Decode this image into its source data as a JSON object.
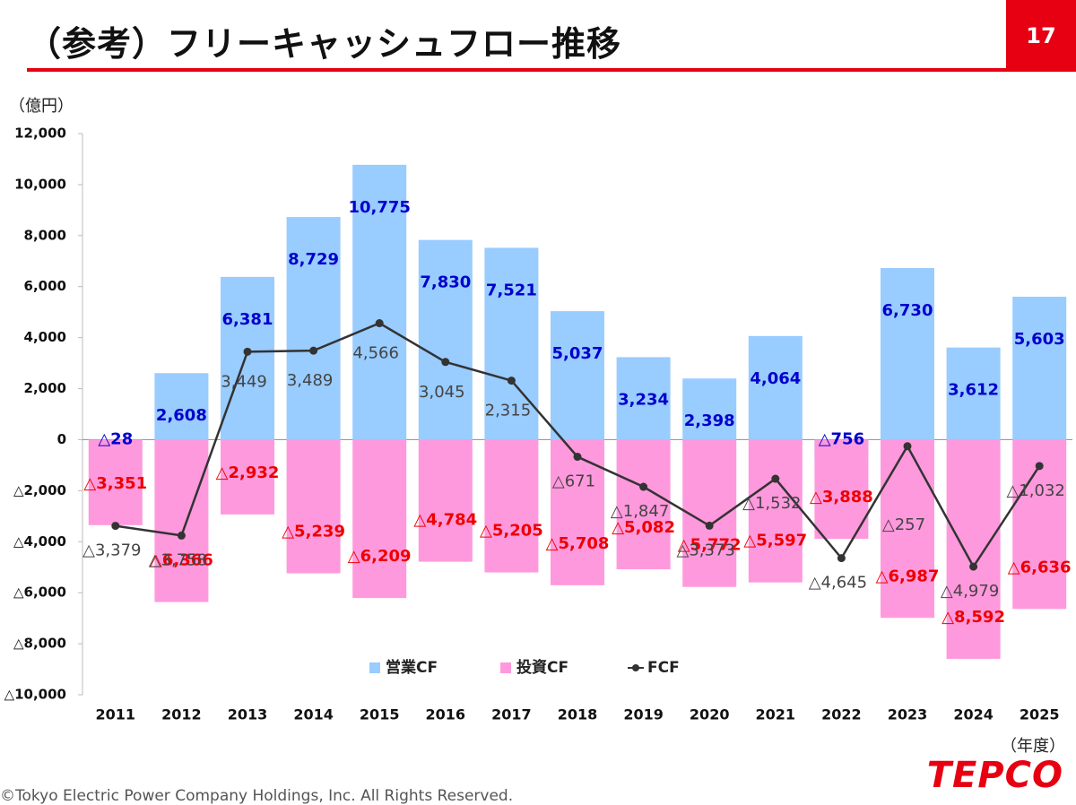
{
  "header": {
    "title": "（参考）フリーキャッシュフロー推移",
    "page_number": "17"
  },
  "footer": {
    "logo_text": "TEPCO",
    "copyright": "©Tokyo Electric Power Company Holdings, Inc. All Rights Reserved."
  },
  "colors": {
    "accent": "#e60012",
    "operating_bar": "#99ccff",
    "investing_bar": "#ff99dd",
    "fcf_line": "#333333",
    "operating_label": "#0000cc",
    "investing_label": "#ee0000",
    "fcf_label": "#444444"
  },
  "chart_data": {
    "type": "bar",
    "title": "",
    "ylabel": "（億円）",
    "xlabel": "（年度）",
    "ylim": [
      -10000,
      12000
    ],
    "yticks": [
      12000,
      10000,
      8000,
      6000,
      4000,
      2000,
      0,
      -2000,
      -4000,
      -6000,
      -8000,
      -10000
    ],
    "ytick_labels": [
      "12,000",
      "10,000",
      "8,000",
      "6,000",
      "4,000",
      "2,000",
      "0",
      "△2,000",
      "△4,000",
      "△6,000",
      "△8,000",
      "△10,000"
    ],
    "categories": [
      "2011",
      "2012",
      "2013",
      "2014",
      "2015",
      "2016",
      "2017",
      "2018",
      "2019",
      "2020",
      "2021",
      "2022",
      "2023",
      "2024",
      "2025"
    ],
    "legend_position": "bottom-center",
    "series": [
      {
        "name": "営業CF",
        "type": "bar",
        "values": [
          -28,
          2608,
          6381,
          8729,
          10775,
          7830,
          7521,
          5037,
          3234,
          2398,
          4064,
          -756,
          6730,
          3612,
          5603
        ],
        "labels": [
          "△28",
          "2,608",
          "6,381",
          "8,729",
          "10,775",
          "7,830",
          "7,521",
          "5,037",
          "3,234",
          "2,398",
          "4,064",
          "△756",
          "6,730",
          "3,612",
          "5,603"
        ]
      },
      {
        "name": "投資CF",
        "type": "bar",
        "values": [
          -3351,
          -6366,
          -2932,
          -5239,
          -6209,
          -4784,
          -5205,
          -5708,
          -5082,
          -5772,
          -5597,
          -3888,
          -6987,
          -8592,
          -6636
        ],
        "labels": [
          "△3,351",
          "△6,366",
          "△2,932",
          "△5,239",
          "△6,209",
          "△4,784",
          "△5,205",
          "△5,708",
          "△5,082",
          "△5,772",
          "△5,597",
          "△3,888",
          "△6,987",
          "△8,592",
          "△6,636"
        ]
      },
      {
        "name": "FCF",
        "type": "line",
        "values": [
          -3379,
          -3758,
          3449,
          3489,
          4566,
          3045,
          2315,
          -671,
          -1847,
          -3373,
          -1532,
          -4645,
          -257,
          -4979,
          -1032
        ],
        "labels": [
          "△3,379",
          "△3,758",
          "3,449",
          "3,489",
          "4,566",
          "3,045",
          "2,315",
          "△671",
          "△1,847",
          "△3,373",
          "△1,532",
          "△4,645",
          "△257",
          "△4,979",
          "△1,032"
        ]
      }
    ]
  }
}
